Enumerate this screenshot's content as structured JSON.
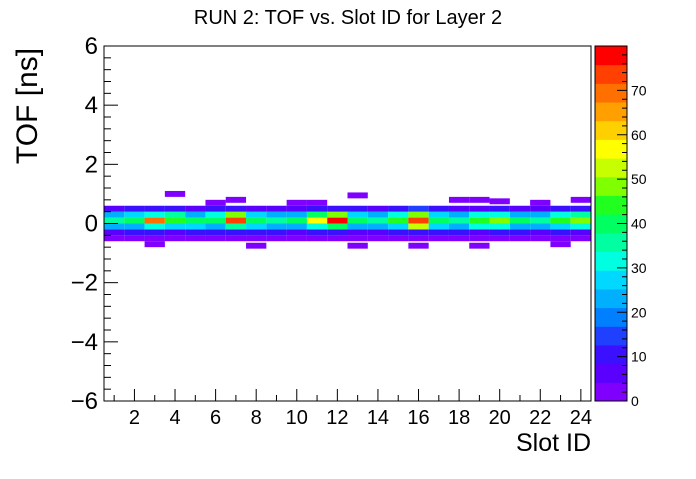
{
  "chart_data": {
    "type": "heatmap",
    "title": "RUN 2: TOF vs. Slot ID for Layer 2",
    "xlabel": "Slot ID",
    "ylabel": "TOF [ns]",
    "xlim": [
      0.5,
      24.5
    ],
    "ylim": [
      -6,
      6
    ],
    "x_ticks": [
      2,
      4,
      6,
      8,
      10,
      12,
      14,
      16,
      18,
      20,
      22,
      24
    ],
    "y_ticks": [
      -6,
      -4,
      -2,
      0,
      2,
      4,
      6
    ],
    "x_tick_labels": [
      "2",
      "4",
      "6",
      "8",
      "10",
      "12",
      "14",
      "16",
      "18",
      "20",
      "22",
      "24"
    ],
    "y_tick_labels": [
      "−6",
      "−4",
      "−2",
      "0",
      "2",
      "4",
      "6"
    ],
    "y_bin_edges": [
      -0.6,
      -0.4,
      -0.2,
      0.0,
      0.2,
      0.4,
      0.6
    ],
    "z_range": [
      0,
      80
    ],
    "z_ticks": [
      0,
      10,
      20,
      30,
      40,
      50,
      60,
      70
    ],
    "z_tick_labels": [
      "0",
      "10",
      "20",
      "30",
      "40",
      "50",
      "60",
      "70"
    ],
    "colorbar_colors": [
      "#7f00ff",
      "#5a00ff",
      "#3a10ff",
      "#2040ff",
      "#0080ff",
      "#00b0ff",
      "#00d8ff",
      "#00ffe0",
      "#00ffa0",
      "#00ff60",
      "#20ff20",
      "#80ff00",
      "#c8ff00",
      "#ffff00",
      "#ffd000",
      "#ffa000",
      "#ff7000",
      "#ff4000",
      "#ff0000"
    ],
    "grid": false,
    "legend": "colorbar-right",
    "columns": [
      {
        "slot": 1,
        "values": [
          3,
          8,
          22,
          36,
          24,
          8
        ]
      },
      {
        "slot": 2,
        "values": [
          2,
          10,
          25,
          40,
          26,
          10
        ]
      },
      {
        "slot": 3,
        "values": [
          4,
          12,
          30,
          70,
          32,
          10
        ]
      },
      {
        "slot": 4,
        "values": [
          2,
          8,
          28,
          45,
          34,
          12
        ]
      },
      {
        "slot": 5,
        "values": [
          2,
          10,
          26,
          38,
          22,
          8
        ]
      },
      {
        "slot": 6,
        "values": [
          3,
          10,
          24,
          42,
          30,
          10
        ]
      },
      {
        "slot": 7,
        "values": [
          3,
          12,
          35,
          75,
          48,
          12
        ]
      },
      {
        "slot": 8,
        "values": [
          4,
          10,
          26,
          40,
          26,
          6
        ]
      },
      {
        "slot": 9,
        "values": [
          2,
          10,
          24,
          36,
          24,
          8
        ]
      },
      {
        "slot": 10,
        "values": [
          2,
          8,
          22,
          38,
          22,
          8
        ]
      },
      {
        "slot": 11,
        "values": [
          2,
          10,
          32,
          55,
          38,
          12
        ]
      },
      {
        "slot": 12,
        "values": [
          2,
          10,
          40,
          76,
          48,
          12
        ]
      },
      {
        "slot": 13,
        "values": [
          2,
          8,
          24,
          38,
          26,
          10
        ]
      },
      {
        "slot": 14,
        "values": [
          2,
          8,
          22,
          34,
          22,
          8
        ]
      },
      {
        "slot": 15,
        "values": [
          3,
          10,
          28,
          45,
          30,
          10
        ]
      },
      {
        "slot": 16,
        "values": [
          4,
          12,
          52,
          72,
          50,
          14
        ]
      },
      {
        "slot": 17,
        "values": [
          2,
          10,
          28,
          42,
          28,
          10
        ]
      },
      {
        "slot": 18,
        "values": [
          2,
          10,
          22,
          36,
          22,
          8
        ]
      },
      {
        "slot": 19,
        "values": [
          3,
          8,
          30,
          46,
          30,
          8
        ]
      },
      {
        "slot": 20,
        "values": [
          2,
          10,
          30,
          48,
          32,
          10
        ]
      },
      {
        "slot": 21,
        "values": [
          2,
          10,
          24,
          38,
          24,
          8
        ]
      },
      {
        "slot": 22,
        "values": [
          2,
          8,
          22,
          34,
          22,
          8
        ]
      },
      {
        "slot": 23,
        "values": [
          2,
          10,
          28,
          44,
          30,
          10
        ]
      },
      {
        "slot": 24,
        "values": [
          2,
          8,
          32,
          50,
          36,
          12
        ]
      }
    ],
    "sparse_cells": [
      {
        "slot": 4,
        "tof": 1.0,
        "value": 2
      },
      {
        "slot": 3,
        "tof": -0.7,
        "value": 2
      },
      {
        "slot": 10,
        "tof": 0.7,
        "value": 2
      },
      {
        "slot": 11,
        "tof": 0.7,
        "value": 2
      },
      {
        "slot": 13,
        "tof": 0.95,
        "value": 2
      },
      {
        "slot": 6,
        "tof": 0.7,
        "value": 2
      },
      {
        "slot": 7,
        "tof": 0.8,
        "value": 2
      },
      {
        "slot": 8,
        "tof": -0.75,
        "value": 2
      },
      {
        "slot": 13,
        "tof": -0.75,
        "value": 2
      },
      {
        "slot": 16,
        "tof": -0.75,
        "value": 2
      },
      {
        "slot": 18,
        "tof": 0.8,
        "value": 2
      },
      {
        "slot": 19,
        "tof": 0.8,
        "value": 2
      },
      {
        "slot": 20,
        "tof": 0.75,
        "value": 2
      },
      {
        "slot": 22,
        "tof": 0.7,
        "value": 2
      },
      {
        "slot": 23,
        "tof": -0.7,
        "value": 2
      },
      {
        "slot": 24,
        "tof": 0.8,
        "value": 2
      },
      {
        "slot": 19,
        "tof": -0.75,
        "value": 2
      }
    ]
  }
}
